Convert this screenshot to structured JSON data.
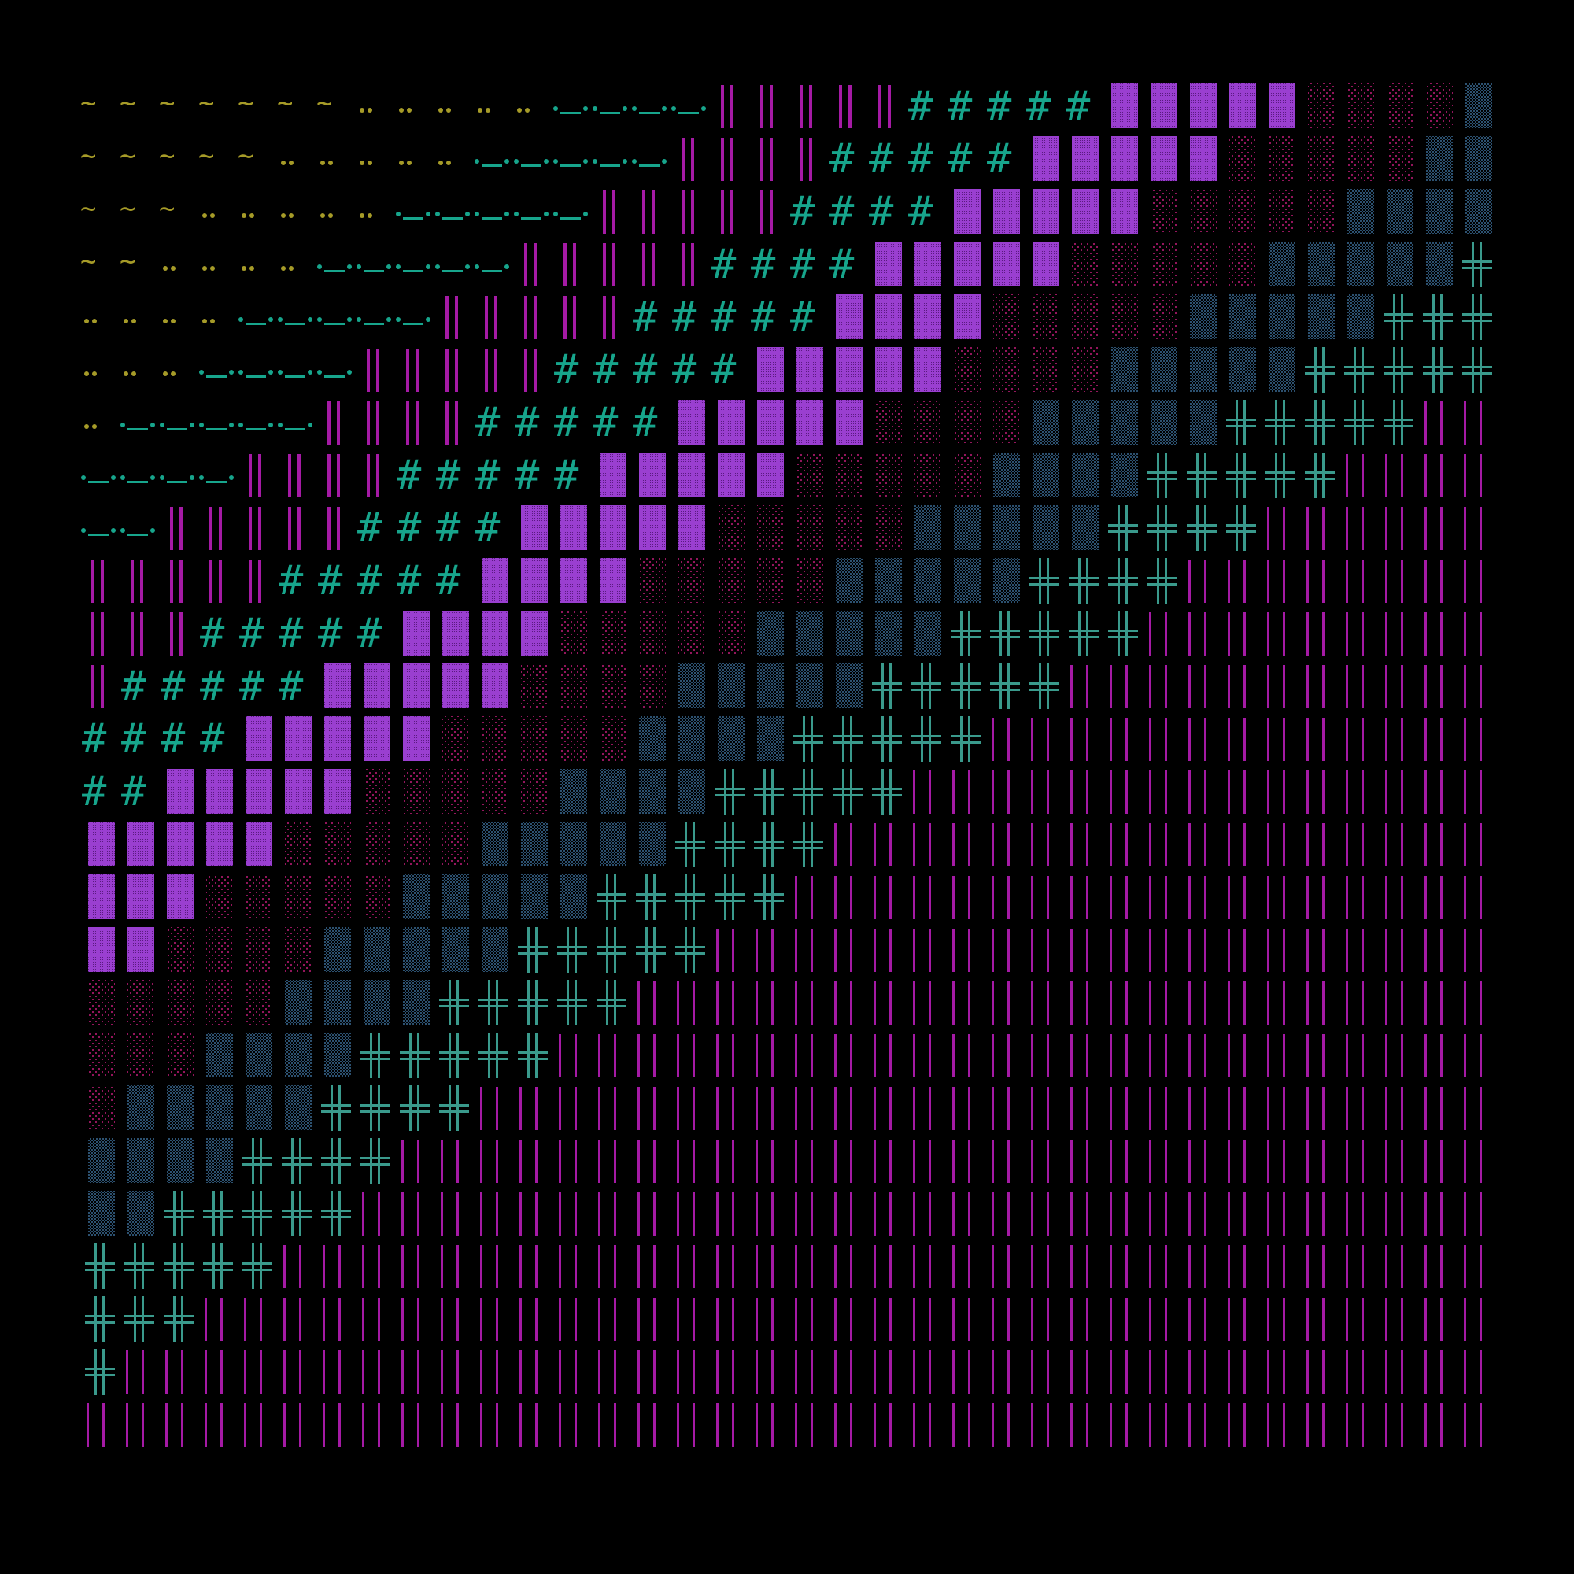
{
  "canvas": {
    "background": "#000000"
  },
  "palette": {
    "olive": "#a69b28",
    "teal": "#17a58c",
    "magenta": "#a51aa5",
    "violet": "#9a3fd0",
    "pink": "#c21b7a",
    "blue": "#4a8ac0",
    "seafoam": "#3a9a8c"
  },
  "texture_bands": [
    {
      "name": "tilde-wave",
      "glyph": "'~\"~",
      "color": "olive"
    },
    {
      "name": "double-dots",
      "glyph": "..",
      "color": "olive"
    },
    {
      "name": "dot-dash",
      "glyph": "•_•",
      "color": "teal"
    },
    {
      "name": "double-bars",
      "glyph": "||",
      "color": "magenta"
    },
    {
      "name": "hash",
      "glyph": "#",
      "color": "teal"
    },
    {
      "name": "solid-blocks",
      "glyph": "▓",
      "color": "violet"
    },
    {
      "name": "sparse-dots",
      "glyph": "░",
      "color": "pink"
    },
    {
      "name": "dense-dots",
      "glyph": "▒",
      "color": "blue"
    },
    {
      "name": "double-cross",
      "glyph": "╬",
      "color": "seafoam"
    },
    {
      "name": "thin-bars",
      "glyph": "|",
      "color": "magenta"
    }
  ]
}
